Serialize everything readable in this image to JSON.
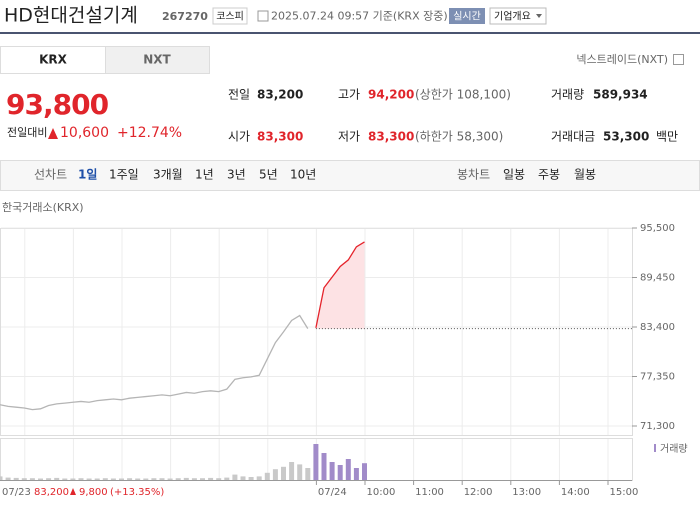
{
  "header": {
    "name": "HD현대건설기계",
    "code": "267270",
    "market": "코스피",
    "time": "2025.07.24 09:57 기준(KRX 장중)",
    "realtime": "실시간",
    "company": "기업개요"
  },
  "tabs": [
    "KRX",
    "NXT"
  ],
  "nxt_link": "넥스트레이드(NXT)",
  "quote": {
    "price": "93,800",
    "change_label": "전일대비",
    "change": "10,600",
    "rate": "+12.74%",
    "stats": [
      {
        "label": "전일",
        "value": "83,200"
      },
      {
        "label": "고가",
        "value": "94,200",
        "note": "(상한가 108,100)"
      },
      {
        "label": "거래량",
        "value": "589,934"
      },
      {
        "label": "시가",
        "value": "83,300"
      },
      {
        "label": "저가",
        "value": "83,300",
        "note": "(하한가 58,300)"
      },
      {
        "label": "거래대금",
        "value": "53,300",
        "unit": "백만"
      }
    ]
  },
  "toolbar": {
    "line_label": "선차트",
    "line_periods": [
      "1일",
      "1주일",
      "3개월",
      "1년",
      "3년",
      "5년",
      "10년"
    ],
    "candle_label": "봉차트",
    "candle_periods": [
      "일봉",
      "주봉",
      "월봉"
    ]
  },
  "chart_data": {
    "type": "line",
    "subtitle": "한국거래소(KRX)",
    "categories": [
      null,
      null,
      null,
      null,
      null,
      null,
      null,
      null,
      null,
      null,
      null,
      null,
      null,
      null,
      null,
      null,
      null,
      null,
      null,
      null,
      null,
      null,
      null,
      null,
      null,
      null,
      null,
      null,
      null,
      null,
      null,
      null,
      null,
      null,
      null,
      null,
      null,
      null,
      null,
      "07/24",
      null,
      null,
      null,
      null,
      null,
      "10:00",
      null,
      null,
      null,
      null,
      null,
      "11:00",
      null,
      null,
      null,
      null,
      null,
      "12:00",
      null,
      null,
      null,
      null,
      null,
      "13:00",
      null,
      null,
      null,
      null,
      null,
      "14:00",
      null,
      null,
      null,
      null,
      null,
      "15:00",
      null,
      null
    ],
    "series": [
      {
        "color": "#b5b5b5",
        "values": [
          73900,
          73700,
          73600,
          73500,
          73300,
          73400,
          73800,
          74000,
          74100,
          74200,
          74300,
          74200,
          74400,
          74500,
          74600,
          74500,
          74700,
          74800,
          74900,
          75000,
          75100,
          75000,
          75200,
          75400,
          75300,
          75500,
          75600,
          75500,
          75800,
          77000,
          77200,
          77300,
          77500,
          79500,
          81500,
          82800,
          84200,
          84800,
          83200,
          null,
          null,
          null,
          null,
          null,
          null,
          null,
          null,
          null,
          null,
          null,
          null,
          null,
          null,
          null,
          null,
          null,
          null,
          null,
          null,
          null,
          null,
          null,
          null,
          null,
          null,
          null,
          null,
          null,
          null,
          null,
          null,
          null,
          null,
          null,
          null,
          null,
          null,
          null
        ]
      },
      {
        "color": "#e5232b",
        "fill": "#fde2e4",
        "values": [
          null,
          null,
          null,
          null,
          null,
          null,
          null,
          null,
          null,
          null,
          null,
          null,
          null,
          null,
          null,
          null,
          null,
          null,
          null,
          null,
          null,
          null,
          null,
          null,
          null,
          null,
          null,
          null,
          null,
          null,
          null,
          null,
          null,
          null,
          null,
          null,
          null,
          null,
          null,
          83300,
          88200,
          89500,
          90800,
          91600,
          93200,
          93800,
          null,
          null,
          null,
          null,
          null,
          null,
          null,
          null,
          null,
          null,
          null,
          null,
          null,
          null,
          null,
          null,
          null,
          null,
          null,
          null,
          null,
          null,
          null,
          null,
          null,
          null,
          null,
          null,
          null,
          null,
          null,
          null
        ]
      }
    ],
    "baseline": 83200,
    "ylim": [
      71300,
      95500
    ],
    "yticks": [
      {
        "value": 71300,
        "label": "71,300"
      },
      {
        "value": 77350,
        "label": "77,350"
      },
      {
        "value": 83400,
        "label": "83,400"
      },
      {
        "value": 89450,
        "label": "89,450"
      },
      {
        "value": 95500,
        "label": "95,500"
      }
    ],
    "volume": {
      "name": "거래량",
      "series": [
        {
          "color": "#c9c9c9",
          "values": [
            6000,
            4000,
            3500,
            3000,
            3000,
            2500,
            3000,
            3500,
            2500,
            2500,
            3000,
            2500,
            2500,
            3000,
            2500,
            2500,
            3000,
            2500,
            2500,
            3000,
            3000,
            2500,
            3000,
            3500,
            3000,
            3000,
            3500,
            3000,
            4000,
            9000,
            6000,
            5000,
            6000,
            12000,
            18000,
            22000,
            30000,
            26000,
            20000,
            null,
            null,
            null,
            null,
            null,
            null,
            null,
            null,
            null,
            null,
            null,
            null,
            null,
            null,
            null,
            null,
            null,
            null,
            null,
            null,
            null,
            null,
            null,
            null,
            null,
            null,
            null,
            null,
            null,
            null,
            null,
            null,
            null,
            null,
            null,
            null,
            null,
            null,
            null
          ]
        },
        {
          "color": "#a18bc9",
          "values": [
            null,
            null,
            null,
            null,
            null,
            null,
            null,
            null,
            null,
            null,
            null,
            null,
            null,
            null,
            null,
            null,
            null,
            null,
            null,
            null,
            null,
            null,
            null,
            null,
            null,
            null,
            null,
            null,
            null,
            null,
            null,
            null,
            null,
            null,
            null,
            null,
            null,
            null,
            null,
            60000,
            45000,
            30000,
            25000,
            35000,
            20000,
            28000,
            null,
            null,
            null,
            null,
            null,
            null,
            null,
            null,
            null,
            null,
            null,
            null,
            null,
            null,
            null,
            null,
            null,
            null,
            null,
            null,
            null,
            null,
            null,
            null,
            null,
            null,
            null,
            null,
            null,
            null,
            null,
            null
          ]
        }
      ]
    },
    "info": {
      "date": "07/23",
      "price": "83,200",
      "change": "9,800",
      "rate": "(+13.35%)"
    }
  }
}
